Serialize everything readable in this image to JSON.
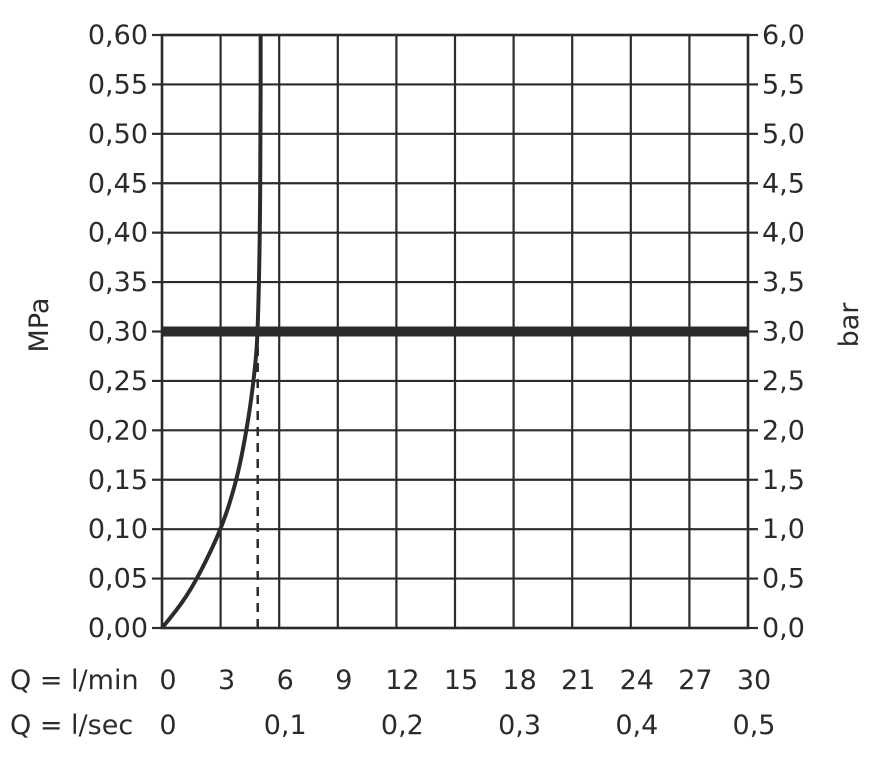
{
  "chart_data": {
    "type": "line",
    "x": {
      "ylabel_left": "MPa",
      "ylabel_right": "bar",
      "xlim": [
        0,
        30
      ],
      "xticks_min": [
        0,
        3,
        6,
        9,
        12,
        15,
        18,
        21,
        24,
        27,
        30
      ],
      "xticks_sec": [
        "0",
        "0,1",
        "0,2",
        "0,3",
        "0,4",
        "0,5"
      ],
      "xticks_sec_at": [
        0,
        6,
        12,
        18,
        24,
        30
      ],
      "xrow1_label": "Q = l/min",
      "xrow2_label": "Q = l/sec"
    },
    "y_left": {
      "ylim": [
        0,
        0.6
      ],
      "ticks": [
        "0,00",
        "0,05",
        "0,10",
        "0,15",
        "0,20",
        "0,25",
        "0,30",
        "0,35",
        "0,40",
        "0,45",
        "0,50",
        "0,55",
        "0,60"
      ]
    },
    "y_right": {
      "ylim": [
        0,
        6.0
      ],
      "ticks": [
        "0,0",
        "0,5",
        "1,0",
        "1,5",
        "2,0",
        "2,5",
        "3,0",
        "3,5",
        "4,0",
        "4,5",
        "5,0",
        "5,5",
        "6,0"
      ]
    },
    "series": [
      {
        "style": "solid",
        "points": [
          [
            0,
            0
          ],
          [
            0.5,
            0.012
          ],
          [
            1,
            0.025
          ],
          [
            1.5,
            0.04
          ],
          [
            2,
            0.058
          ],
          [
            2.5,
            0.078
          ],
          [
            3,
            0.1
          ],
          [
            3.5,
            0.128
          ],
          [
            4,
            0.165
          ],
          [
            4.5,
            0.22
          ],
          [
            4.8,
            0.27
          ],
          [
            4.9,
            0.3
          ],
          [
            5.0,
            0.38
          ],
          [
            5.05,
            0.5
          ],
          [
            5.05,
            0.6
          ]
        ]
      }
    ],
    "reference_lines": [
      {
        "orientation": "horizontal",
        "y": 0.3,
        "style": "thick-solid"
      },
      {
        "orientation": "vertical",
        "x": 4.9,
        "y_from": 0,
        "y_to": 0.3,
        "style": "dashed"
      }
    ],
    "grid": true
  }
}
